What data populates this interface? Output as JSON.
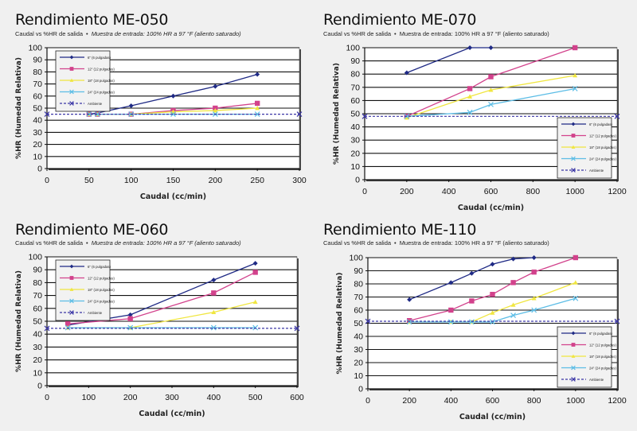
{
  "colors": {
    "6in": "#1f2a85",
    "12in": "#d2428c",
    "18in": "#f0e640",
    "24in": "#5cbde6",
    "ambient": "#3b36a6"
  },
  "chart_data": [
    {
      "type": "line",
      "title": "Rendimiento ME-050",
      "subtitle_a": "Caudal vs %HR de salida",
      "bullet": "•",
      "subtitle_b": "Muestra de entrada: 100% HR a 97 °F (aliento saturado)",
      "xlabel": "Caudal (cc/min)",
      "ylabel": "%HR (Humedad Relativa)",
      "xlim": [
        0,
        300
      ],
      "xticks": [
        0,
        50,
        100,
        150,
        200,
        250,
        300
      ],
      "ylim": [
        0,
        100
      ],
      "yticks": [
        0,
        10,
        20,
        30,
        40,
        50,
        60,
        70,
        80,
        90,
        100
      ],
      "grid": true,
      "legend": "top-left",
      "series": [
        {
          "name": "6\" (6 pulgadas)",
          "key": "6in",
          "marker": "diamond",
          "x": [
            50,
            60,
            100,
            150,
            200,
            250
          ],
          "y": [
            45,
            46,
            52,
            60,
            68,
            78
          ]
        },
        {
          "name": "12\" (12 pulgadas)",
          "key": "12in",
          "marker": "square",
          "x": [
            50,
            60,
            100,
            150,
            200,
            250
          ],
          "y": [
            45,
            45,
            45,
            48,
            50,
            54
          ]
        },
        {
          "name": "18\" (18 pulgadas)",
          "key": "18in",
          "marker": "triangle",
          "x": [
            50,
            60,
            100,
            150,
            200,
            250
          ],
          "y": [
            45,
            45,
            45,
            47,
            48,
            50
          ]
        },
        {
          "name": "24\" (24 pulgadas)",
          "key": "24in",
          "marker": "x",
          "x": [
            50,
            60,
            100,
            150,
            200,
            250
          ],
          "y": [
            45,
            45,
            45,
            45,
            45,
            45
          ]
        },
        {
          "name": "Ambiente",
          "key": "ambient",
          "marker": "x",
          "dashed": true,
          "x": [
            0,
            300
          ],
          "y": [
            45,
            45
          ]
        }
      ]
    },
    {
      "type": "line",
      "title": "Rendimiento ME-070",
      "subtitle_a": "Caudal vs %HR de salida",
      "bullet": "•",
      "subtitle_b": "Muestra de entrada: 100% HR a 97 °F (aliento saturado)",
      "xlabel": "Caudal (cc/min)",
      "ylabel": "%HR (Humedad Relativa)",
      "xlim": [
        0,
        1200
      ],
      "xticks": [
        0,
        200,
        400,
        600,
        800,
        1000,
        1200
      ],
      "ylim": [
        0,
        100
      ],
      "yticks": [
        0,
        10,
        20,
        30,
        40,
        50,
        60,
        70,
        80,
        90,
        100
      ],
      "grid": true,
      "legend": "bottom-right",
      "series": [
        {
          "name": "6\" (6 pulgadas)",
          "key": "6in",
          "marker": "diamond",
          "x": [
            200,
            500,
            600
          ],
          "y": [
            81,
            100,
            100
          ]
        },
        {
          "name": "12\" (12 pulgadas)",
          "key": "12in",
          "marker": "square",
          "x": [
            200,
            500,
            600,
            1000
          ],
          "y": [
            48,
            69,
            78,
            100
          ]
        },
        {
          "name": "18\" (18 pulgadas)",
          "key": "18in",
          "marker": "triangle",
          "x": [
            200,
            500,
            600,
            1000
          ],
          "y": [
            47,
            63,
            68,
            79
          ]
        },
        {
          "name": "24\" (24 pulgadas)",
          "key": "24in",
          "marker": "x",
          "x": [
            200,
            500,
            600,
            1000
          ],
          "y": [
            48,
            51,
            57,
            69
          ]
        },
        {
          "name": "Ambiente",
          "key": "ambient",
          "marker": "x",
          "dashed": true,
          "x": [
            0,
            1200
          ],
          "y": [
            48,
            48
          ]
        }
      ]
    },
    {
      "type": "line",
      "title": "Rendimiento ME-060",
      "subtitle_a": "Caudal vs %HR de salida",
      "bullet": "•",
      "subtitle_b": "Muestra de entrada: 100% HR a 97 °F (aliento saturado)",
      "xlabel": "Caudal (cc/min)",
      "ylabel": "%HR (Humedad Relativa)",
      "xlim": [
        0,
        600
      ],
      "xticks": [
        0,
        100,
        200,
        300,
        400,
        500,
        600
      ],
      "ylim": [
        0,
        100
      ],
      "yticks": [
        0,
        10,
        20,
        30,
        40,
        50,
        60,
        70,
        80,
        90,
        100
      ],
      "grid": true,
      "legend": "top-left",
      "series": [
        {
          "name": "6\" (6 pulgadas)",
          "key": "6in",
          "marker": "diamond",
          "x": [
            50,
            200,
            400,
            500
          ],
          "y": [
            47,
            55,
            82,
            95
          ]
        },
        {
          "name": "12\" (12 pulgadas)",
          "key": "12in",
          "marker": "square",
          "x": [
            50,
            200,
            400,
            500
          ],
          "y": [
            48,
            52,
            72,
            88
          ]
        },
        {
          "name": "18\" (18 pulgadas)",
          "key": "18in",
          "marker": "triangle",
          "x": [
            50,
            200,
            400,
            500
          ],
          "y": [
            45,
            45,
            57,
            65
          ]
        },
        {
          "name": "24\" (24 pulgadas)",
          "key": "24in",
          "marker": "x",
          "x": [
            50,
            200,
            400,
            500
          ],
          "y": [
            45,
            45,
            45,
            45
          ]
        },
        {
          "name": "Ambiente",
          "key": "ambient",
          "marker": "x",
          "dashed": true,
          "x": [
            0,
            600
          ],
          "y": [
            44.5,
            44.5
          ]
        }
      ]
    },
    {
      "type": "line",
      "title": "Rendimiento ME-110",
      "subtitle_a": "Caudal vs %HR de salida",
      "bullet": "•",
      "subtitle_b": "Muestra de entrada: 100% HR a 97 °F (aliento saturado)",
      "xlabel": "Caudal (cc/min)",
      "ylabel": "%HR (Humedad Relativa)",
      "xlim": [
        0,
        1200
      ],
      "xticks": [
        0,
        200,
        400,
        600,
        800,
        1000,
        1200
      ],
      "ylim": [
        0,
        100
      ],
      "yticks": [
        0,
        10,
        20,
        30,
        40,
        50,
        60,
        70,
        80,
        90,
        100
      ],
      "grid": true,
      "legend": "bottom-right",
      "series": [
        {
          "name": "6\" (6 pulgadas)",
          "key": "6in",
          "marker": "diamond",
          "x": [
            200,
            400,
            500,
            600,
            700,
            800
          ],
          "y": [
            68,
            81,
            88,
            95,
            99,
            100
          ]
        },
        {
          "name": "12\" (12 pulgadas)",
          "key": "12in",
          "marker": "square",
          "x": [
            200,
            400,
            500,
            600,
            700,
            800,
            1000
          ],
          "y": [
            52,
            60,
            67,
            72,
            81,
            89,
            100
          ]
        },
        {
          "name": "18\" (18 pulgadas)",
          "key": "18in",
          "marker": "triangle",
          "x": [
            200,
            400,
            500,
            600,
            700,
            800,
            1000
          ],
          "y": [
            51,
            51,
            51,
            58,
            64,
            69,
            81
          ]
        },
        {
          "name": "24\" (24 pulgadas)",
          "key": "24in",
          "marker": "x",
          "x": [
            200,
            400,
            500,
            600,
            700,
            800,
            1000
          ],
          "y": [
            51,
            51,
            51,
            51,
            56,
            60,
            69
          ]
        },
        {
          "name": "Ambiente",
          "key": "ambient",
          "marker": "x",
          "dashed": true,
          "x": [
            0,
            1200
          ],
          "y": [
            51.5,
            51.5
          ]
        }
      ]
    }
  ]
}
